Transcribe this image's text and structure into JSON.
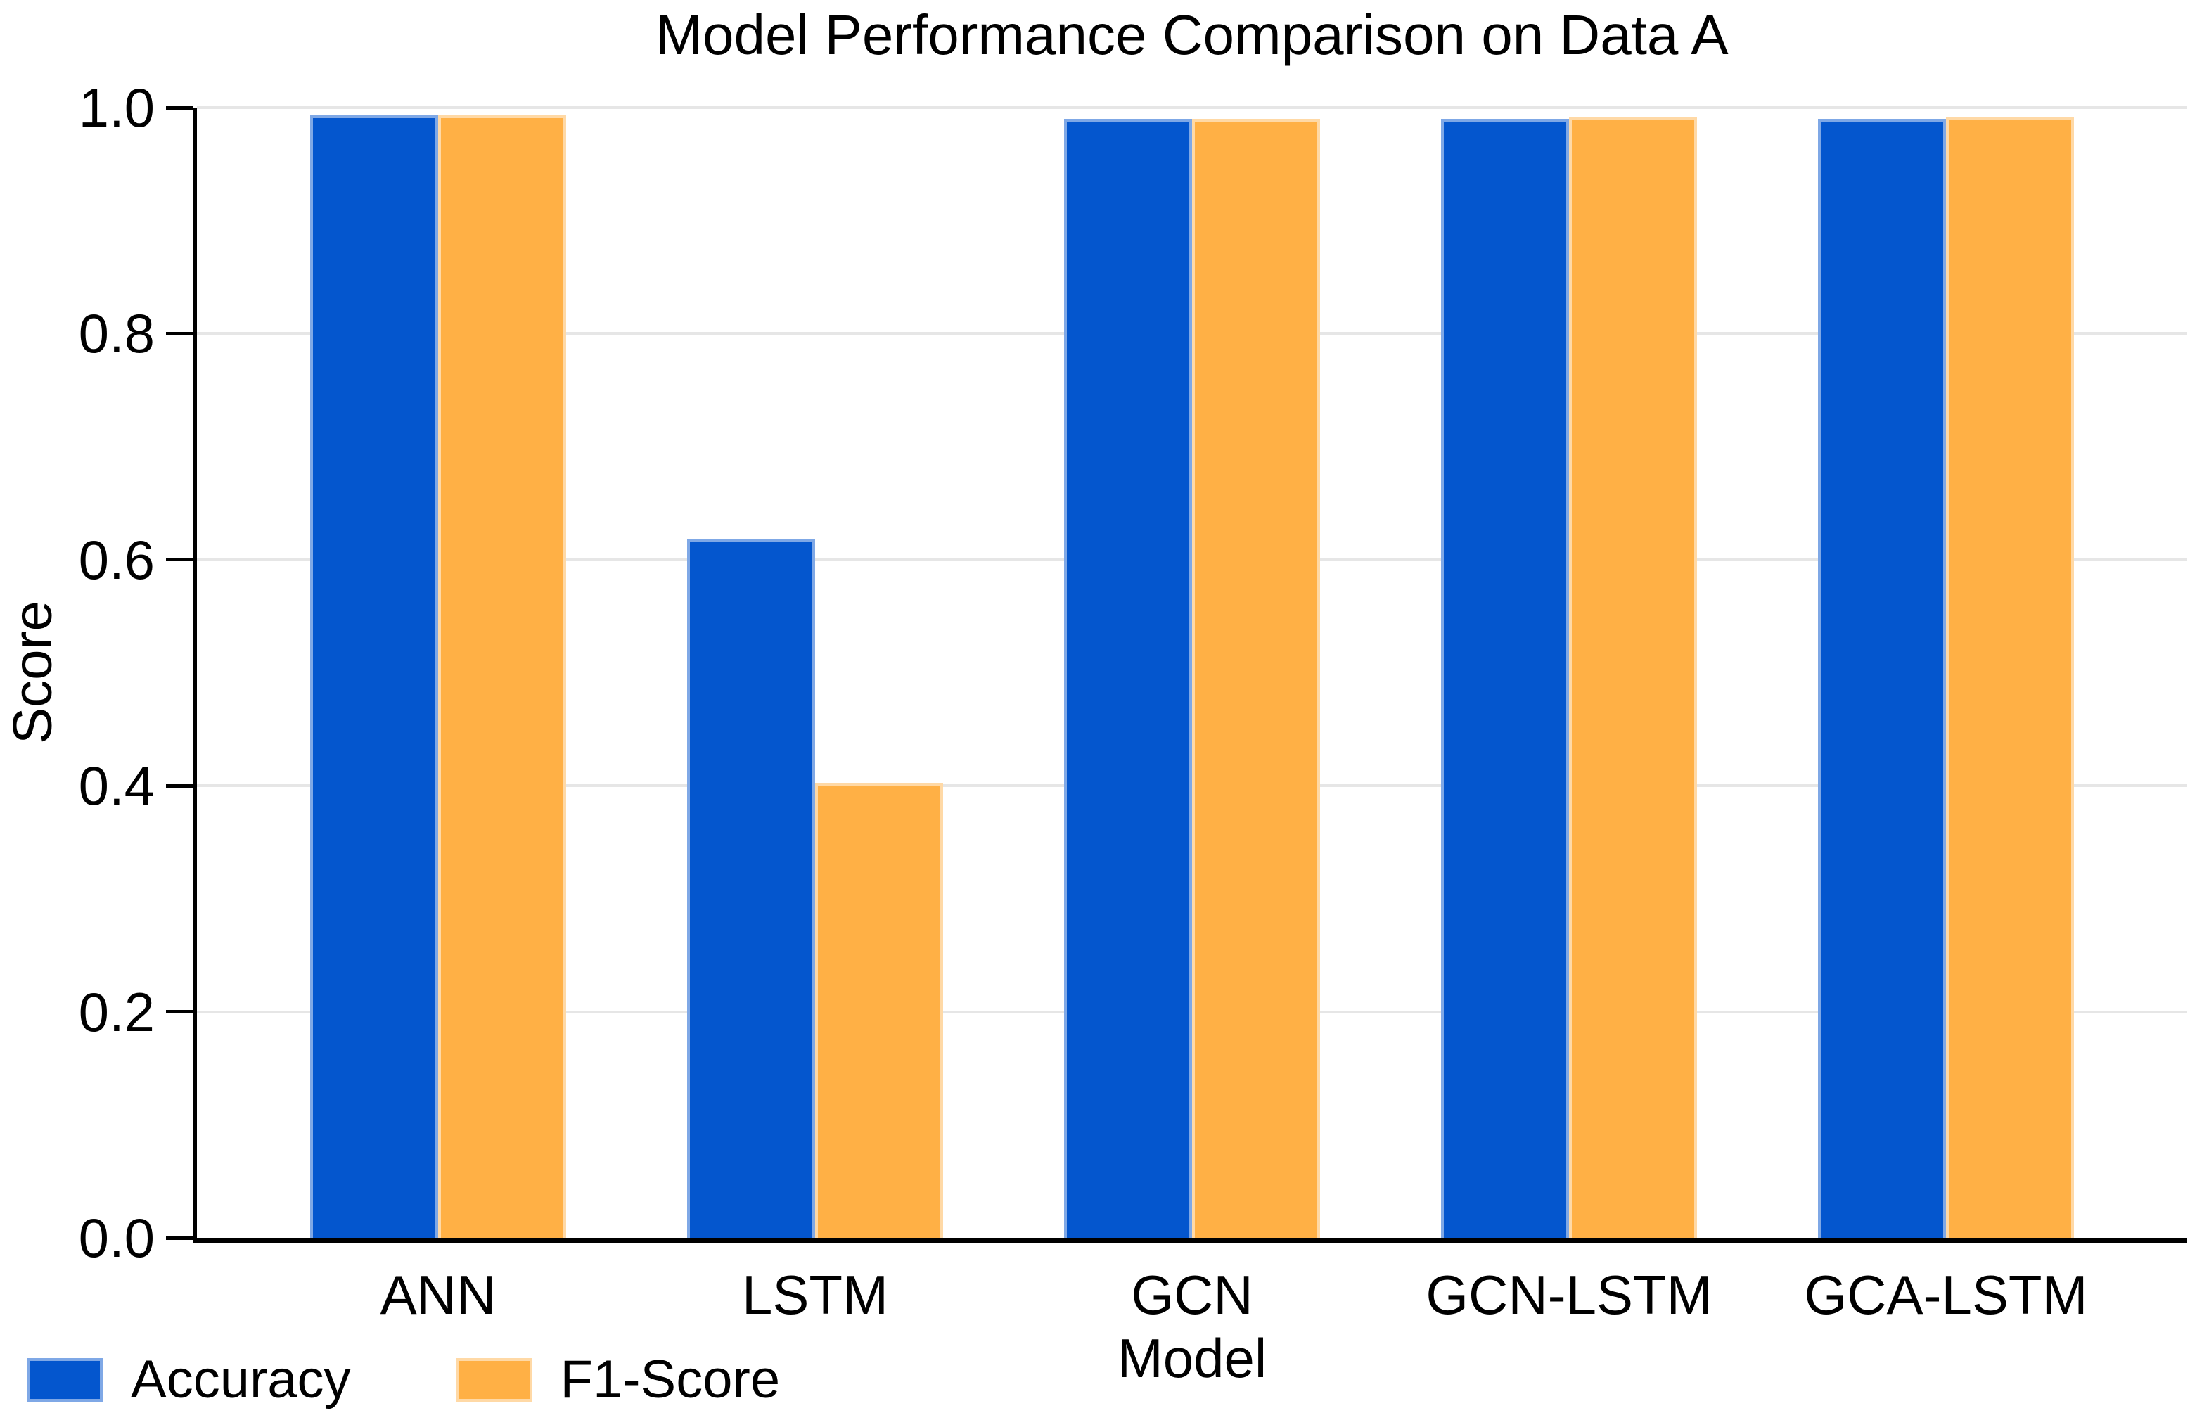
{
  "chart_data": {
    "type": "bar",
    "title": "Model Performance Comparison on Data A",
    "xlabel": "Model",
    "ylabel": "Score",
    "categories": [
      "ANN",
      "LSTM",
      "GCN",
      "GCN-LSTM",
      "GCA-LSTM"
    ],
    "series": [
      {
        "name": "Accuracy",
        "color": "#0456CE",
        "edge_color": "#7fa8e6",
        "values": [
          0.993,
          0.618,
          0.99,
          0.99,
          0.99
        ]
      },
      {
        "name": "F1-Score",
        "color": "#FFB045",
        "edge_color": "#ffd9a6",
        "values": [
          0.993,
          0.402,
          0.99,
          0.992,
          0.991
        ]
      }
    ],
    "ylim": [
      0.0,
      1.0
    ],
    "yticks": [
      0.0,
      0.2,
      0.4,
      0.6,
      0.8,
      1.0
    ],
    "ytick_labels": [
      "0.0",
      "0.2",
      "0.4",
      "0.6",
      "0.8",
      "1.0"
    ],
    "grid": "horizontal",
    "grid_color": "#e6e6e6",
    "axis_color": "#000000",
    "text_color": "#000000",
    "legend_position": "bottom-left",
    "background_color": "#ffffff"
  }
}
